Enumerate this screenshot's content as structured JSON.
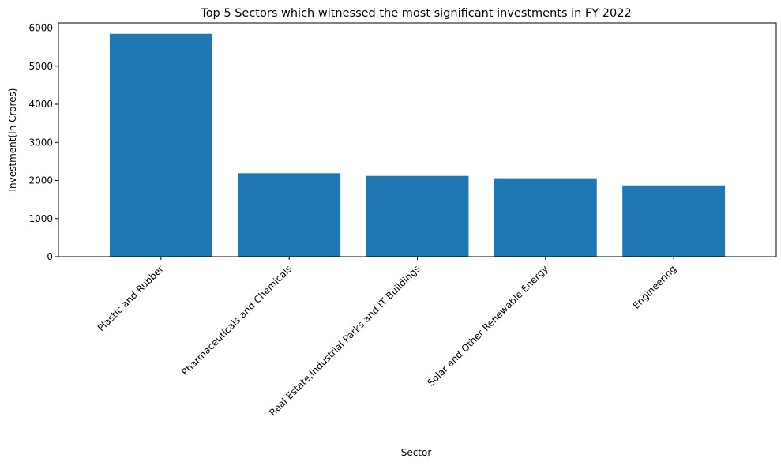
{
  "chart_data": {
    "type": "bar",
    "title": "Top 5 Sectors which witnessed the most significant investments in FY 2022",
    "xlabel": "Sector",
    "ylabel": "Investment(In Crores)",
    "categories": [
      "Plastic and Rubber",
      "Pharmaceuticals and Chemicals",
      "Real Estate,Industrial Parks and IT Buildings",
      "Solar and Other Renewable Energy",
      "Engineering"
    ],
    "values": [
      5850,
      2190,
      2120,
      2060,
      1870
    ],
    "ylim": [
      0,
      6135
    ],
    "yticks": [
      0,
      1000,
      2000,
      3000,
      4000,
      5000,
      6000
    ],
    "grid": false,
    "colors": {
      "bar": "#1f77b4",
      "axis": "#000000"
    }
  }
}
